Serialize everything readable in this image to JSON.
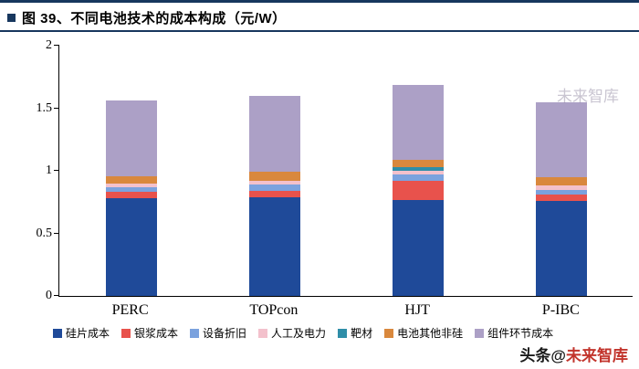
{
  "header": {
    "title": "图 39、不同电池技术的成本构成（元/W）"
  },
  "watermarks": {
    "chart": "未来智库",
    "prefix": "头条@",
    "brand": "未来智库"
  },
  "chart_data": {
    "type": "bar",
    "stacked": true,
    "title": "不同电池技术的成本构成（元/W）",
    "xlabel": "",
    "ylabel": "",
    "ylim": [
      0,
      2
    ],
    "yticks": [
      "0",
      "0.5",
      "1",
      "1.5",
      "2"
    ],
    "grid": false,
    "legend_position": "bottom",
    "categories": [
      "PERC",
      "TOPcon",
      "HJT",
      "P-IBC"
    ],
    "series": [
      {
        "name": "硅片成本",
        "color": "#1F4A99",
        "values": [
          0.78,
          0.79,
          0.77,
          0.76
        ]
      },
      {
        "name": "银浆成本",
        "color": "#E8524C",
        "values": [
          0.05,
          0.05,
          0.15,
          0.05
        ]
      },
      {
        "name": "设备折旧",
        "color": "#7BA2DE",
        "values": [
          0.04,
          0.05,
          0.05,
          0.04
        ]
      },
      {
        "name": "人工及电力",
        "color": "#F3C1CC",
        "values": [
          0.03,
          0.03,
          0.03,
          0.03
        ]
      },
      {
        "name": "靶材",
        "color": "#2F8EA8",
        "values": [
          0.0,
          0.0,
          0.03,
          0.0
        ]
      },
      {
        "name": "电池其他非硅",
        "color": "#D9883D",
        "values": [
          0.06,
          0.07,
          0.06,
          0.07
        ]
      },
      {
        "name": "组件环节成本",
        "color": "#ACA0C6",
        "values": [
          0.6,
          0.61,
          0.6,
          0.6
        ]
      }
    ],
    "totals": [
      1.56,
      1.6,
      1.69,
      1.55
    ]
  }
}
